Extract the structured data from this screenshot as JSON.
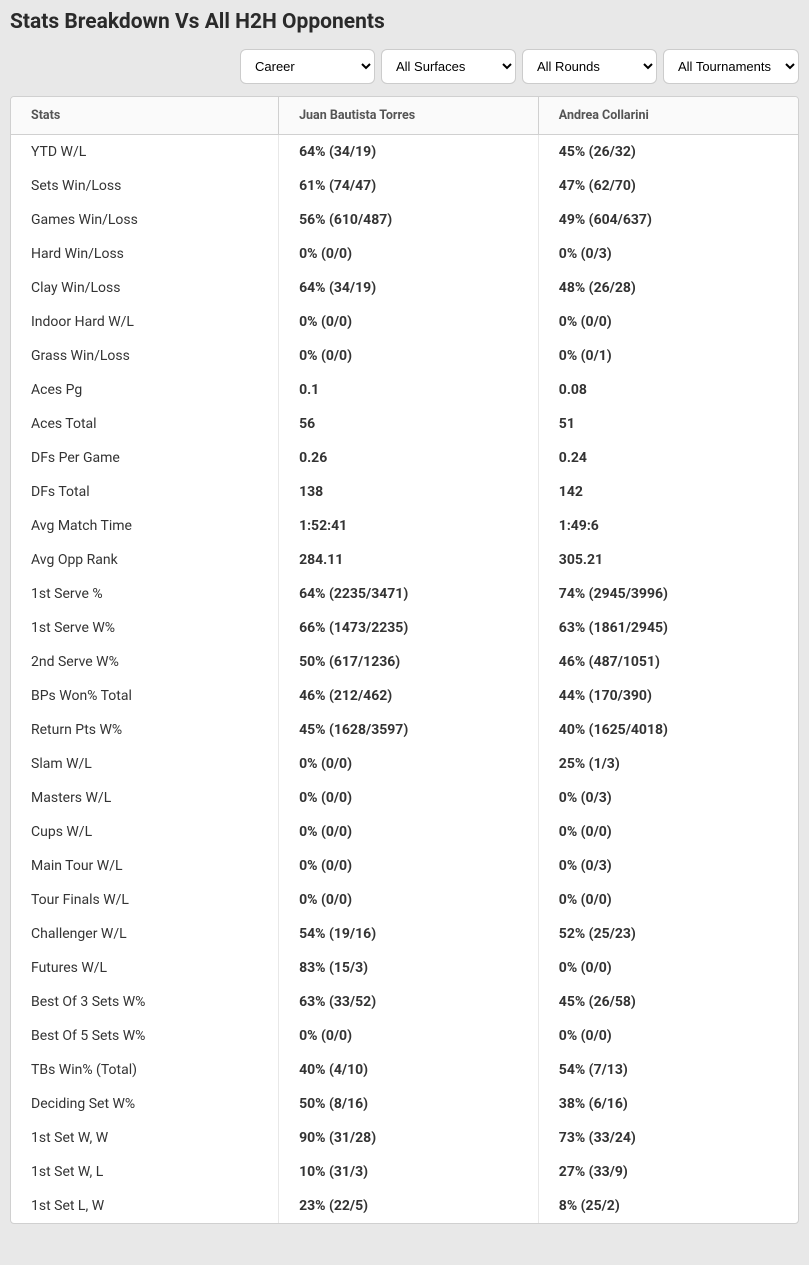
{
  "title": "Stats Breakdown Vs All H2H Opponents",
  "filters": {
    "period": "Career",
    "surface": "All Surfaces",
    "round": "All Rounds",
    "tournament": "All Tournaments"
  },
  "table": {
    "columns": [
      "Stats",
      "Juan Bautista Torres",
      "Andrea Collarini"
    ],
    "rows": [
      [
        "YTD W/L",
        "64% (34/19)",
        "45% (26/32)"
      ],
      [
        "Sets Win/Loss",
        "61% (74/47)",
        "47% (62/70)"
      ],
      [
        "Games Win/Loss",
        "56% (610/487)",
        "49% (604/637)"
      ],
      [
        "Hard Win/Loss",
        "0% (0/0)",
        "0% (0/3)"
      ],
      [
        "Clay Win/Loss",
        "64% (34/19)",
        "48% (26/28)"
      ],
      [
        "Indoor Hard W/L",
        "0% (0/0)",
        "0% (0/0)"
      ],
      [
        "Grass Win/Loss",
        "0% (0/0)",
        "0% (0/1)"
      ],
      [
        "Aces Pg",
        "0.1",
        "0.08"
      ],
      [
        "Aces Total",
        "56",
        "51"
      ],
      [
        "DFs Per Game",
        "0.26",
        "0.24"
      ],
      [
        "DFs Total",
        "138",
        "142"
      ],
      [
        "Avg Match Time",
        "1:52:41",
        "1:49:6"
      ],
      [
        "Avg Opp Rank",
        "284.11",
        "305.21"
      ],
      [
        "1st Serve %",
        "64% (2235/3471)",
        "74% (2945/3996)"
      ],
      [
        "1st Serve W%",
        "66% (1473/2235)",
        "63% (1861/2945)"
      ],
      [
        "2nd Serve W%",
        "50% (617/1236)",
        "46% (487/1051)"
      ],
      [
        "BPs Won% Total",
        "46% (212/462)",
        "44% (170/390)"
      ],
      [
        "Return Pts W%",
        "45% (1628/3597)",
        "40% (1625/4018)"
      ],
      [
        "Slam W/L",
        "0% (0/0)",
        "25% (1/3)"
      ],
      [
        "Masters W/L",
        "0% (0/0)",
        "0% (0/3)"
      ],
      [
        "Cups W/L",
        "0% (0/0)",
        "0% (0/0)"
      ],
      [
        "Main Tour W/L",
        "0% (0/0)",
        "0% (0/3)"
      ],
      [
        "Tour Finals W/L",
        "0% (0/0)",
        "0% (0/0)"
      ],
      [
        "Challenger W/L",
        "54% (19/16)",
        "52% (25/23)"
      ],
      [
        "Futures W/L",
        "83% (15/3)",
        "0% (0/0)"
      ],
      [
        "Best Of 3 Sets W%",
        "63% (33/52)",
        "45% (26/58)"
      ],
      [
        "Best Of 5 Sets W%",
        "0% (0/0)",
        "0% (0/0)"
      ],
      [
        "TBs Win% (Total)",
        "40% (4/10)",
        "54% (7/13)"
      ],
      [
        "Deciding Set W%",
        "50% (8/16)",
        "38% (6/16)"
      ],
      [
        "1st Set W, W",
        "90% (31/28)",
        "73% (33/24)"
      ],
      [
        "1st Set W, L",
        "10% (31/3)",
        "27% (33/9)"
      ],
      [
        "1st Set L, W",
        "23% (22/5)",
        "8% (25/2)"
      ]
    ]
  }
}
